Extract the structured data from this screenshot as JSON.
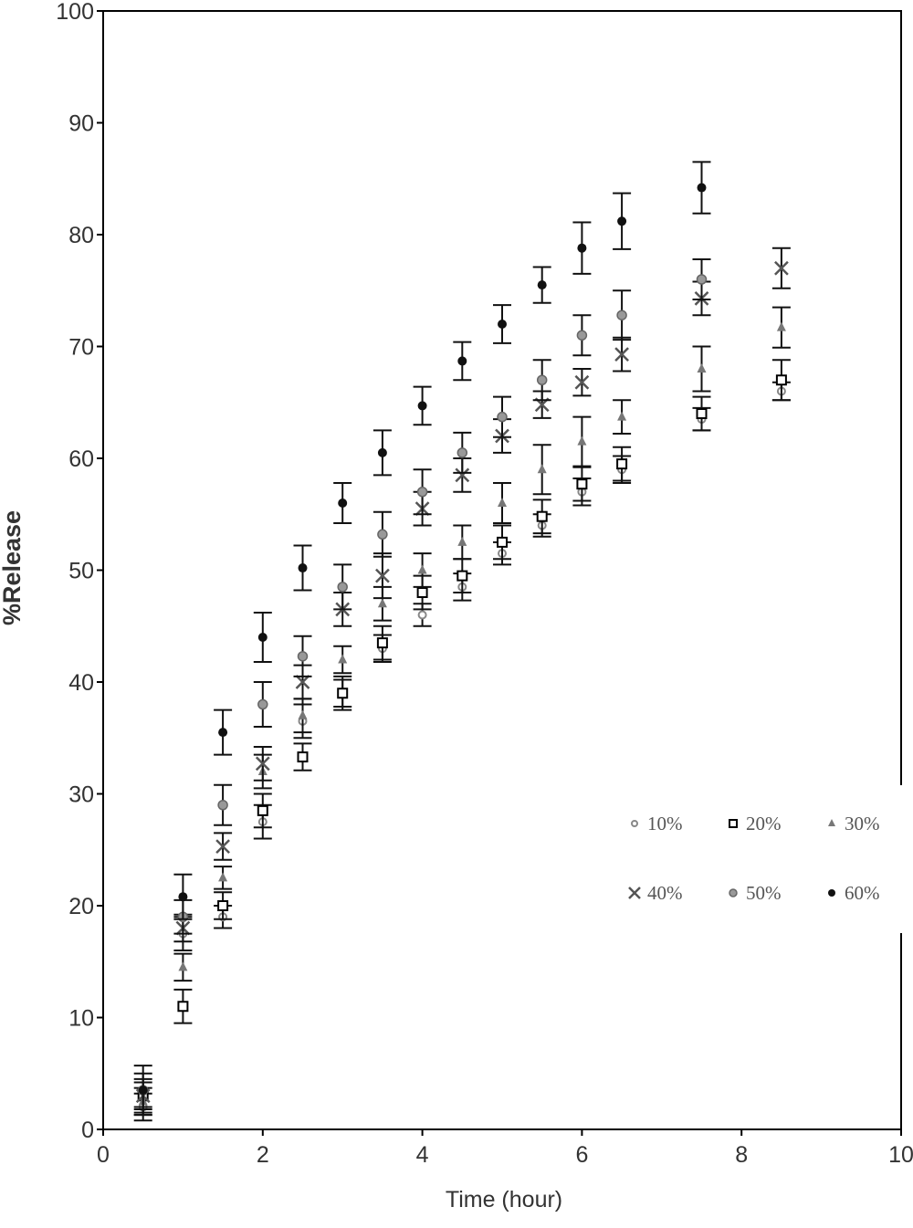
{
  "chart_data": {
    "type": "scatter",
    "x_label": "Time (hour)",
    "y_label": "%Release",
    "x": [
      0.5,
      1,
      1.5,
      2,
      2.5,
      3,
      3.5,
      4,
      4.5,
      5,
      5.5,
      6,
      6.5,
      7.5,
      8.5
    ],
    "xlim": [
      0,
      10
    ],
    "xticks": [
      0,
      2,
      4,
      6,
      8,
      10
    ],
    "ylim": [
      0,
      100
    ],
    "yticks": [
      0,
      10,
      20,
      30,
      40,
      50,
      60,
      70,
      80,
      90,
      100
    ],
    "legend": "lower right",
    "series": [
      {
        "name": "10%",
        "color": "#888888",
        "marker": "circle-open",
        "values": [
          2.0,
          17.5,
          19.0,
          27.5,
          36.5,
          39.0,
          43.0,
          46.0,
          48.5,
          51.5,
          54.0,
          57.0,
          59.0,
          63.5,
          66.0
        ],
        "errors": [
          1.2,
          1.5,
          1.0,
          1.5,
          1.5,
          1.2,
          1.2,
          1.0,
          1.2,
          1.0,
          1.0,
          1.2,
          1.2,
          1.0,
          0.8
        ]
      },
      {
        "name": "20%",
        "color": "#000000",
        "marker": "square-open",
        "values": [
          3.0,
          11.0,
          20.0,
          28.5,
          33.3,
          39.0,
          43.5,
          48.0,
          49.5,
          52.5,
          54.8,
          57.7,
          59.5,
          64.0,
          67.0
        ],
        "errors": [
          1.5,
          1.5,
          1.2,
          1.5,
          1.2,
          1.5,
          1.5,
          1.5,
          1.5,
          1.5,
          1.5,
          1.5,
          1.5,
          1.5,
          1.8
        ]
      },
      {
        "name": "30%",
        "color": "#777777",
        "marker": "triangle",
        "values": [
          2.5,
          14.5,
          22.5,
          32.0,
          37.0,
          42.0,
          47.0,
          50.0,
          52.5,
          56.0,
          59.0,
          61.5,
          63.7,
          68.0,
          71.7
        ],
        "errors": [
          1.2,
          1.2,
          1.0,
          1.5,
          1.5,
          1.2,
          1.5,
          1.5,
          1.5,
          1.8,
          2.2,
          2.2,
          1.5,
          2.0,
          1.8
        ]
      },
      {
        "name": "40%",
        "color": "#555555",
        "marker": "cross",
        "values": [
          3.0,
          18.0,
          25.3,
          32.7,
          40.0,
          46.5,
          49.5,
          55.5,
          58.5,
          62.0,
          64.8,
          66.8,
          69.3,
          74.3,
          77.0
        ],
        "errors": [
          1.2,
          1.2,
          1.2,
          1.5,
          1.5,
          1.5,
          2.0,
          1.5,
          1.5,
          1.5,
          1.2,
          1.2,
          1.5,
          1.5,
          1.8
        ]
      },
      {
        "name": "50%",
        "color": "#666666",
        "marker": "circle-grey",
        "values": [
          3.5,
          19.0,
          29.0,
          38.0,
          42.3,
          48.5,
          53.2,
          57.0,
          60.5,
          63.7,
          67.0,
          71.0,
          72.8,
          76.0,
          null
        ],
        "errors": [
          1.5,
          1.5,
          1.8,
          2.0,
          1.8,
          2.0,
          2.0,
          2.0,
          1.8,
          1.8,
          1.8,
          1.8,
          2.2,
          1.8,
          null
        ]
      },
      {
        "name": "60%",
        "color": "#111111",
        "marker": "circle-filled",
        "values": [
          3.5,
          20.8,
          35.5,
          44.0,
          50.2,
          56.0,
          60.5,
          64.7,
          68.7,
          72.0,
          75.5,
          78.8,
          81.2,
          84.2,
          null
        ],
        "errors": [
          2.2,
          2.0,
          2.0,
          2.2,
          2.0,
          1.8,
          2.0,
          1.7,
          1.7,
          1.7,
          1.6,
          2.3,
          2.5,
          2.3,
          null
        ]
      }
    ]
  }
}
